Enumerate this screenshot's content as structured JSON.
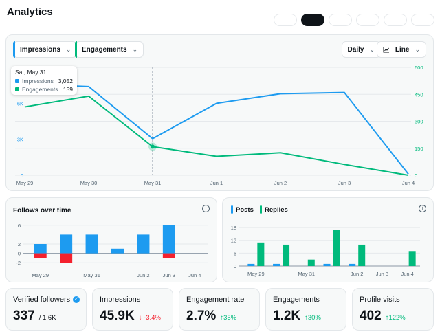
{
  "header": {
    "title": "Analytics"
  },
  "controls": {
    "metric_1": "Impressions",
    "metric_2": "Engagements",
    "granularity": "Daily",
    "chart_style": "Line"
  },
  "colors": {
    "impressions": "#1d9bf0",
    "engagements": "#00ba7c",
    "negative": "#f4212e",
    "grid": "#e6e9ec"
  },
  "tooltip": {
    "date": "Sat, May 31",
    "rows": [
      {
        "label": "Impressions",
        "value": "3,052"
      },
      {
        "label": "Engagements",
        "value": "159"
      }
    ]
  },
  "chart_data": [
    {
      "type": "line",
      "title": "",
      "categories": [
        "May 29",
        "May 30",
        "May 31",
        "Jun 1",
        "Jun 2",
        "Jun 3",
        "Jun 4"
      ],
      "series": [
        {
          "name": "Impressions",
          "axis": "left",
          "values": [
            7600,
            7400,
            3052,
            6000,
            6800,
            6900,
            100
          ]
        },
        {
          "name": "Engagements",
          "axis": "right",
          "values": [
            380,
            440,
            159,
            105,
            125,
            60,
            0
          ]
        }
      ],
      "y_left": {
        "ylim": [
          0,
          9000
        ],
        "ticks": [
          0,
          3000,
          6000
        ],
        "tick_labels": [
          "0",
          "3K",
          "6K"
        ]
      },
      "y_right": {
        "ylim": [
          0,
          600
        ],
        "ticks": [
          0,
          150,
          300,
          450,
          600
        ],
        "tick_labels": [
          "0",
          "150",
          "300",
          "450",
          "600"
        ]
      },
      "highlight_index": 2
    },
    {
      "type": "bar",
      "title": "Follows over time",
      "categories": [
        "May 29",
        "May 30",
        "May 31",
        "Jun 1",
        "Jun 2",
        "Jun 3",
        "Jun 4"
      ],
      "x_tick_labels": [
        "May 29",
        "",
        "May 31",
        "",
        "Jun 2",
        "Jun 3",
        "Jun 4"
      ],
      "series": [
        {
          "name": "Follows",
          "values": [
            2,
            4,
            4,
            1,
            4,
            6,
            0
          ]
        },
        {
          "name": "Unfollows",
          "values": [
            -1,
            -2,
            0,
            0,
            0,
            -1,
            0
          ]
        }
      ],
      "ylim": [
        -3,
        7
      ],
      "ticks": [
        -2,
        0,
        2,
        6
      ],
      "tick_labels": [
        "-2",
        "0",
        "2",
        "6"
      ]
    },
    {
      "type": "bar",
      "title": "",
      "categories": [
        "May 29",
        "May 30",
        "May 31",
        "Jun 1",
        "Jun 2",
        "Jun 3",
        "Jun 4"
      ],
      "x_tick_labels": [
        "May 29",
        "",
        "May 31",
        "",
        "Jun 2",
        "Jun 3",
        "Jun 4"
      ],
      "series": [
        {
          "name": "Posts",
          "values": [
            1,
            1,
            0,
            1,
            1,
            0,
            0
          ]
        },
        {
          "name": "Replies",
          "values": [
            11,
            10,
            3,
            17,
            10,
            0,
            7
          ]
        }
      ],
      "ylim": [
        0,
        19
      ],
      "ticks": [
        0,
        6,
        12,
        18
      ],
      "tick_labels": [
        "0",
        "6",
        "12",
        "18"
      ]
    }
  ],
  "cards": {
    "follows_title": "Follows over time",
    "legend_posts": "Posts",
    "legend_replies": "Replies",
    "info_glyph": "i"
  },
  "stats": [
    {
      "label": "Verified followers",
      "value": "337",
      "sub": "/ 1.6K",
      "verified_glyph": "✓"
    },
    {
      "label": "Impressions",
      "value": "45.9K",
      "change": "↓ -3.4%"
    },
    {
      "label": "Engagement rate",
      "value": "2.7%",
      "change": "↑35%"
    },
    {
      "label": "Engagements",
      "value": "1.2K",
      "change": "↑30%"
    },
    {
      "label": "Profile visits",
      "value": "402",
      "change": "↑122%"
    }
  ]
}
